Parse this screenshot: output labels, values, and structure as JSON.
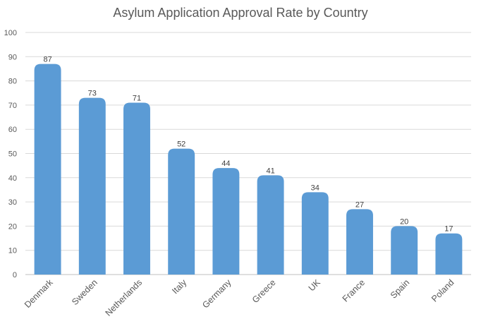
{
  "chart_data": {
    "type": "bar",
    "title": "Asylum Application Approval Rate by Country",
    "categories": [
      "Denmark",
      "Sweden",
      "Netherlands",
      "Italy",
      "Germany",
      "Greece",
      "UK",
      "France",
      "Spain",
      "Poland"
    ],
    "values": [
      87,
      73,
      71,
      52,
      44,
      41,
      34,
      27,
      20,
      17
    ],
    "ylim": [
      0,
      100
    ],
    "yticks": [
      0,
      10,
      20,
      30,
      40,
      50,
      60,
      70,
      80,
      90,
      100
    ],
    "grid": true,
    "bar_color": "#5b9bd5"
  }
}
